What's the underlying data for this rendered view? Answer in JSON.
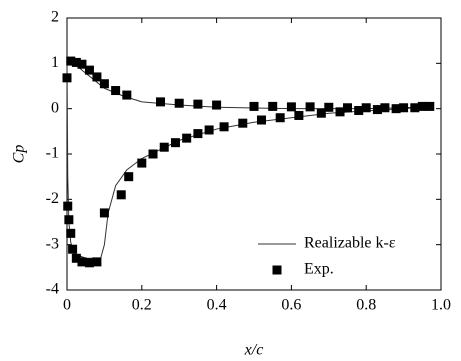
{
  "chart_data": {
    "type": "line-scatter",
    "xlabel": "x/c",
    "ylabel": "Cp",
    "xlim": [
      0,
      1
    ],
    "ylim": [
      -4,
      2
    ],
    "xticks": [
      0,
      0.2,
      0.4,
      0.6,
      0.8,
      {
        "value": 1,
        "label": "1.0"
      }
    ],
    "yticks": [
      2,
      1,
      0,
      -1,
      -2,
      -3,
      -4
    ],
    "legend": "lower right",
    "series": [
      {
        "name": "Realizable k-ε",
        "kind": "line",
        "color": "#333333",
        "x": [
          0.98,
          0.9,
          0.8,
          0.6,
          0.4,
          0.3,
          0.2,
          0.15,
          0.1,
          0.07,
          0.04,
          0.02,
          0.005,
          0,
          0.002,
          0.005,
          0.01,
          0.02,
          0.05,
          0.09,
          0.1,
          0.11,
          0.13,
          0.16,
          0.2,
          0.3,
          0.4,
          0.5,
          0.6,
          0.7,
          0.8,
          0.9,
          0.98
        ],
        "values": [
          0.05,
          0.02,
          0.0,
          0.0,
          0.03,
          0.08,
          0.15,
          0.28,
          0.45,
          0.65,
          0.85,
          1.0,
          1.08,
          1.1,
          -1.5,
          -2.5,
          -2.95,
          -3.2,
          -3.3,
          -3.3,
          -3.0,
          -2.3,
          -1.7,
          -1.35,
          -1.1,
          -0.7,
          -0.45,
          -0.3,
          -0.2,
          -0.1,
          -0.05,
          0.0,
          0.05
        ]
      },
      {
        "name": "Exp.",
        "kind": "scatter",
        "color": "#000000",
        "x": [
          0.0,
          0.01,
          0.025,
          0.04,
          0.06,
          0.08,
          0.1,
          0.13,
          0.16,
          0.25,
          0.3,
          0.35,
          0.4,
          0.5,
          0.55,
          0.6,
          0.65,
          0.7,
          0.75,
          0.8,
          0.85,
          0.9,
          0.95,
          0.97,
          0.002,
          0.005,
          0.01,
          0.015,
          0.025,
          0.04,
          0.06,
          0.08,
          0.1,
          0.145,
          0.165,
          0.2,
          0.23,
          0.26,
          0.29,
          0.32,
          0.35,
          0.38,
          0.42,
          0.47,
          0.52,
          0.57,
          0.62,
          0.68,
          0.73,
          0.78,
          0.83,
          0.88,
          0.93
        ],
        "values": [
          0.68,
          1.05,
          1.02,
          0.98,
          0.85,
          0.7,
          0.55,
          0.4,
          0.3,
          0.15,
          0.12,
          0.1,
          0.08,
          0.05,
          0.05,
          0.04,
          0.04,
          0.03,
          0.02,
          0.02,
          0.02,
          0.02,
          0.05,
          0.05,
          -2.15,
          -2.45,
          -2.75,
          -3.1,
          -3.3,
          -3.38,
          -3.4,
          -3.38,
          -2.3,
          -1.9,
          -1.5,
          -1.2,
          -1.0,
          -0.85,
          -0.75,
          -0.65,
          -0.55,
          -0.47,
          -0.4,
          -0.32,
          -0.25,
          -0.2,
          -0.15,
          -0.1,
          -0.07,
          -0.04,
          -0.02,
          0.0,
          0.02
        ]
      }
    ]
  }
}
